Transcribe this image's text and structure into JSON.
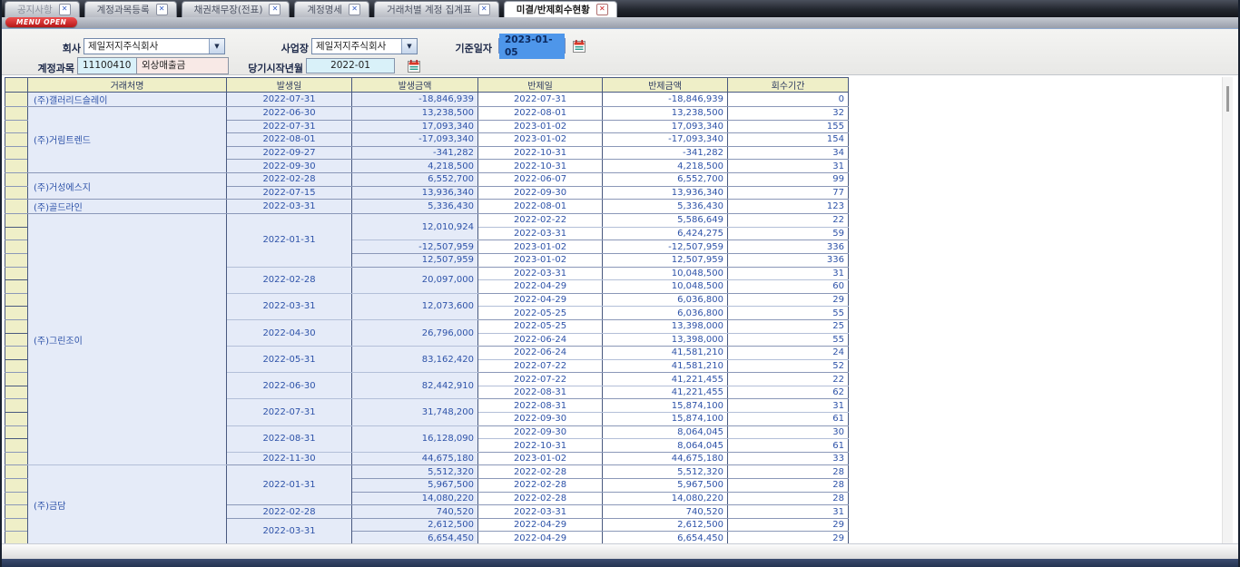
{
  "tabbar": {
    "tabs": [
      {
        "label": "공지사항",
        "active": false,
        "dim": true
      },
      {
        "label": "계정과목등록",
        "active": false,
        "dim": false
      },
      {
        "label": "채권채무장(전표)",
        "active": false,
        "dim": false
      },
      {
        "label": "계정명세",
        "active": false,
        "dim": false
      },
      {
        "label": "거래처별 계정 집계표",
        "active": false,
        "dim": false
      },
      {
        "label": "미결/반제회수현황",
        "active": true,
        "dim": false
      }
    ],
    "close_icon": "✕"
  },
  "menu": {
    "open_label": "MENU OPEN"
  },
  "form": {
    "company": {
      "label": "회사",
      "value": "제일저지주식회사"
    },
    "site": {
      "label": "사업장",
      "value": "제일저지주식회사"
    },
    "base_date": {
      "label": "기준일자",
      "value": "2023-01-05"
    },
    "account": {
      "label": "계정과목",
      "code": "11100410",
      "name": "외상매출금"
    },
    "period_start": {
      "label": "당기시작년월",
      "value": "2022-01"
    }
  },
  "grid": {
    "columns": [
      "거래처명",
      "발생일",
      "발생금액",
      "반제일",
      "반제금액",
      "회수기간"
    ],
    "groups": [
      {
        "name": "(주)갤러리드슬레이",
        "occurrences": [
          {
            "date": "2022-07-31",
            "amounts": [
              {
                "amount": "-18,846,939",
                "settlements": [
                  {
                    "date": "2022-07-31",
                    "amount": "-18,846,939",
                    "days": "0"
                  }
                ]
              }
            ]
          }
        ]
      },
      {
        "name": "(주)거림트렌드",
        "occurrences": [
          {
            "date": "2022-06-30",
            "amounts": [
              {
                "amount": "13,238,500",
                "settlements": [
                  {
                    "date": "2022-08-01",
                    "amount": "13,238,500",
                    "days": "32"
                  }
                ]
              }
            ]
          },
          {
            "date": "2022-07-31",
            "amounts": [
              {
                "amount": "17,093,340",
                "settlements": [
                  {
                    "date": "2023-01-02",
                    "amount": "17,093,340",
                    "days": "155"
                  }
                ]
              }
            ]
          },
          {
            "date": "2022-08-01",
            "amounts": [
              {
                "amount": "-17,093,340",
                "settlements": [
                  {
                    "date": "2023-01-02",
                    "amount": "-17,093,340",
                    "days": "154"
                  }
                ]
              }
            ]
          },
          {
            "date": "2022-09-27",
            "amounts": [
              {
                "amount": "-341,282",
                "settlements": [
                  {
                    "date": "2022-10-31",
                    "amount": "-341,282",
                    "days": "34"
                  }
                ]
              }
            ]
          },
          {
            "date": "2022-09-30",
            "amounts": [
              {
                "amount": "4,218,500",
                "settlements": [
                  {
                    "date": "2022-10-31",
                    "amount": "4,218,500",
                    "days": "31"
                  }
                ]
              }
            ]
          }
        ]
      },
      {
        "name": "(주)거성에스지",
        "occurrences": [
          {
            "date": "2022-02-28",
            "amounts": [
              {
                "amount": "6,552,700",
                "settlements": [
                  {
                    "date": "2022-06-07",
                    "amount": "6,552,700",
                    "days": "99"
                  }
                ]
              }
            ]
          },
          {
            "date": "2022-07-15",
            "amounts": [
              {
                "amount": "13,936,340",
                "settlements": [
                  {
                    "date": "2022-09-30",
                    "amount": "13,936,340",
                    "days": "77"
                  }
                ]
              }
            ]
          }
        ]
      },
      {
        "name": "(주)골드라인",
        "occurrences": [
          {
            "date": "2022-03-31",
            "amounts": [
              {
                "amount": "5,336,430",
                "settlements": [
                  {
                    "date": "2022-08-01",
                    "amount": "5,336,430",
                    "days": "123"
                  }
                ]
              }
            ]
          }
        ]
      },
      {
        "name": "(주)그린조이",
        "occurrences": [
          {
            "date": "2022-01-31",
            "amounts": [
              {
                "amount": "12,010,924",
                "settlements": [
                  {
                    "date": "2022-02-22",
                    "amount": "5,586,649",
                    "days": "22"
                  },
                  {
                    "date": "2022-03-31",
                    "amount": "6,424,275",
                    "days": "59"
                  }
                ]
              },
              {
                "amount": "-12,507,959",
                "settlements": [
                  {
                    "date": "2023-01-02",
                    "amount": "-12,507,959",
                    "days": "336"
                  }
                ]
              },
              {
                "amount": "12,507,959",
                "settlements": [
                  {
                    "date": "2023-01-02",
                    "amount": "12,507,959",
                    "days": "336"
                  }
                ]
              }
            ]
          },
          {
            "date": "2022-02-28",
            "amounts": [
              {
                "amount": "20,097,000",
                "settlements": [
                  {
                    "date": "2022-03-31",
                    "amount": "10,048,500",
                    "days": "31"
                  },
                  {
                    "date": "2022-04-29",
                    "amount": "10,048,500",
                    "days": "60"
                  }
                ]
              }
            ]
          },
          {
            "date": "2022-03-31",
            "amounts": [
              {
                "amount": "12,073,600",
                "settlements": [
                  {
                    "date": "2022-04-29",
                    "amount": "6,036,800",
                    "days": "29"
                  },
                  {
                    "date": "2022-05-25",
                    "amount": "6,036,800",
                    "days": "55"
                  }
                ]
              }
            ]
          },
          {
            "date": "2022-04-30",
            "amounts": [
              {
                "amount": "26,796,000",
                "settlements": [
                  {
                    "date": "2022-05-25",
                    "amount": "13,398,000",
                    "days": "25"
                  },
                  {
                    "date": "2022-06-24",
                    "amount": "13,398,000",
                    "days": "55"
                  }
                ]
              }
            ]
          },
          {
            "date": "2022-05-31",
            "amounts": [
              {
                "amount": "83,162,420",
                "settlements": [
                  {
                    "date": "2022-06-24",
                    "amount": "41,581,210",
                    "days": "24"
                  },
                  {
                    "date": "2022-07-22",
                    "amount": "41,581,210",
                    "days": "52"
                  }
                ]
              }
            ]
          },
          {
            "date": "2022-06-30",
            "amounts": [
              {
                "amount": "82,442,910",
                "settlements": [
                  {
                    "date": "2022-07-22",
                    "amount": "41,221,455",
                    "days": "22"
                  },
                  {
                    "date": "2022-08-31",
                    "amount": "41,221,455",
                    "days": "62"
                  }
                ]
              }
            ]
          },
          {
            "date": "2022-07-31",
            "amounts": [
              {
                "amount": "31,748,200",
                "settlements": [
                  {
                    "date": "2022-08-31",
                    "amount": "15,874,100",
                    "days": "31"
                  },
                  {
                    "date": "2022-09-30",
                    "amount": "15,874,100",
                    "days": "61"
                  }
                ]
              }
            ]
          },
          {
            "date": "2022-08-31",
            "amounts": [
              {
                "amount": "16,128,090",
                "settlements": [
                  {
                    "date": "2022-09-30",
                    "amount": "8,064,045",
                    "days": "30"
                  },
                  {
                    "date": "2022-10-31",
                    "amount": "8,064,045",
                    "days": "61"
                  }
                ]
              }
            ]
          },
          {
            "date": "2022-11-30",
            "amounts": [
              {
                "amount": "44,675,180",
                "settlements": [
                  {
                    "date": "2023-01-02",
                    "amount": "44,675,180",
                    "days": "33"
                  }
                ]
              }
            ]
          }
        ]
      },
      {
        "name": "(주)금담",
        "occurrences": [
          {
            "date": "2022-01-31",
            "amounts": [
              {
                "amount": "5,512,320",
                "settlements": [
                  {
                    "date": "2022-02-28",
                    "amount": "5,512,320",
                    "days": "28"
                  }
                ]
              },
              {
                "amount": "5,967,500",
                "settlements": [
                  {
                    "date": "2022-02-28",
                    "amount": "5,967,500",
                    "days": "28"
                  }
                ]
              },
              {
                "amount": "14,080,220",
                "settlements": [
                  {
                    "date": "2022-02-28",
                    "amount": "14,080,220",
                    "days": "28"
                  }
                ]
              }
            ]
          },
          {
            "date": "2022-02-28",
            "amounts": [
              {
                "amount": "740,520",
                "settlements": [
                  {
                    "date": "2022-03-31",
                    "amount": "740,520",
                    "days": "31"
                  }
                ]
              }
            ]
          },
          {
            "date": "2022-03-31",
            "amounts": [
              {
                "amount": "2,612,500",
                "settlements": [
                  {
                    "date": "2022-04-29",
                    "amount": "2,612,500",
                    "days": "29"
                  }
                ]
              },
              {
                "amount": "6,654,450",
                "settlements": [
                  {
                    "date": "2022-04-29",
                    "amount": "6,654,450",
                    "days": "29"
                  }
                ]
              }
            ]
          }
        ]
      }
    ]
  },
  "colors": {
    "header_bg": "#efefc8",
    "occur_cell_bg": "#e5ebf8",
    "grid_text": "#2d52a8",
    "selection_blue": "#4e96ea",
    "menu_pill_red": "#c42020",
    "active_close_red": "#cc2222",
    "tabbar_dark": "#1b1f27"
  }
}
